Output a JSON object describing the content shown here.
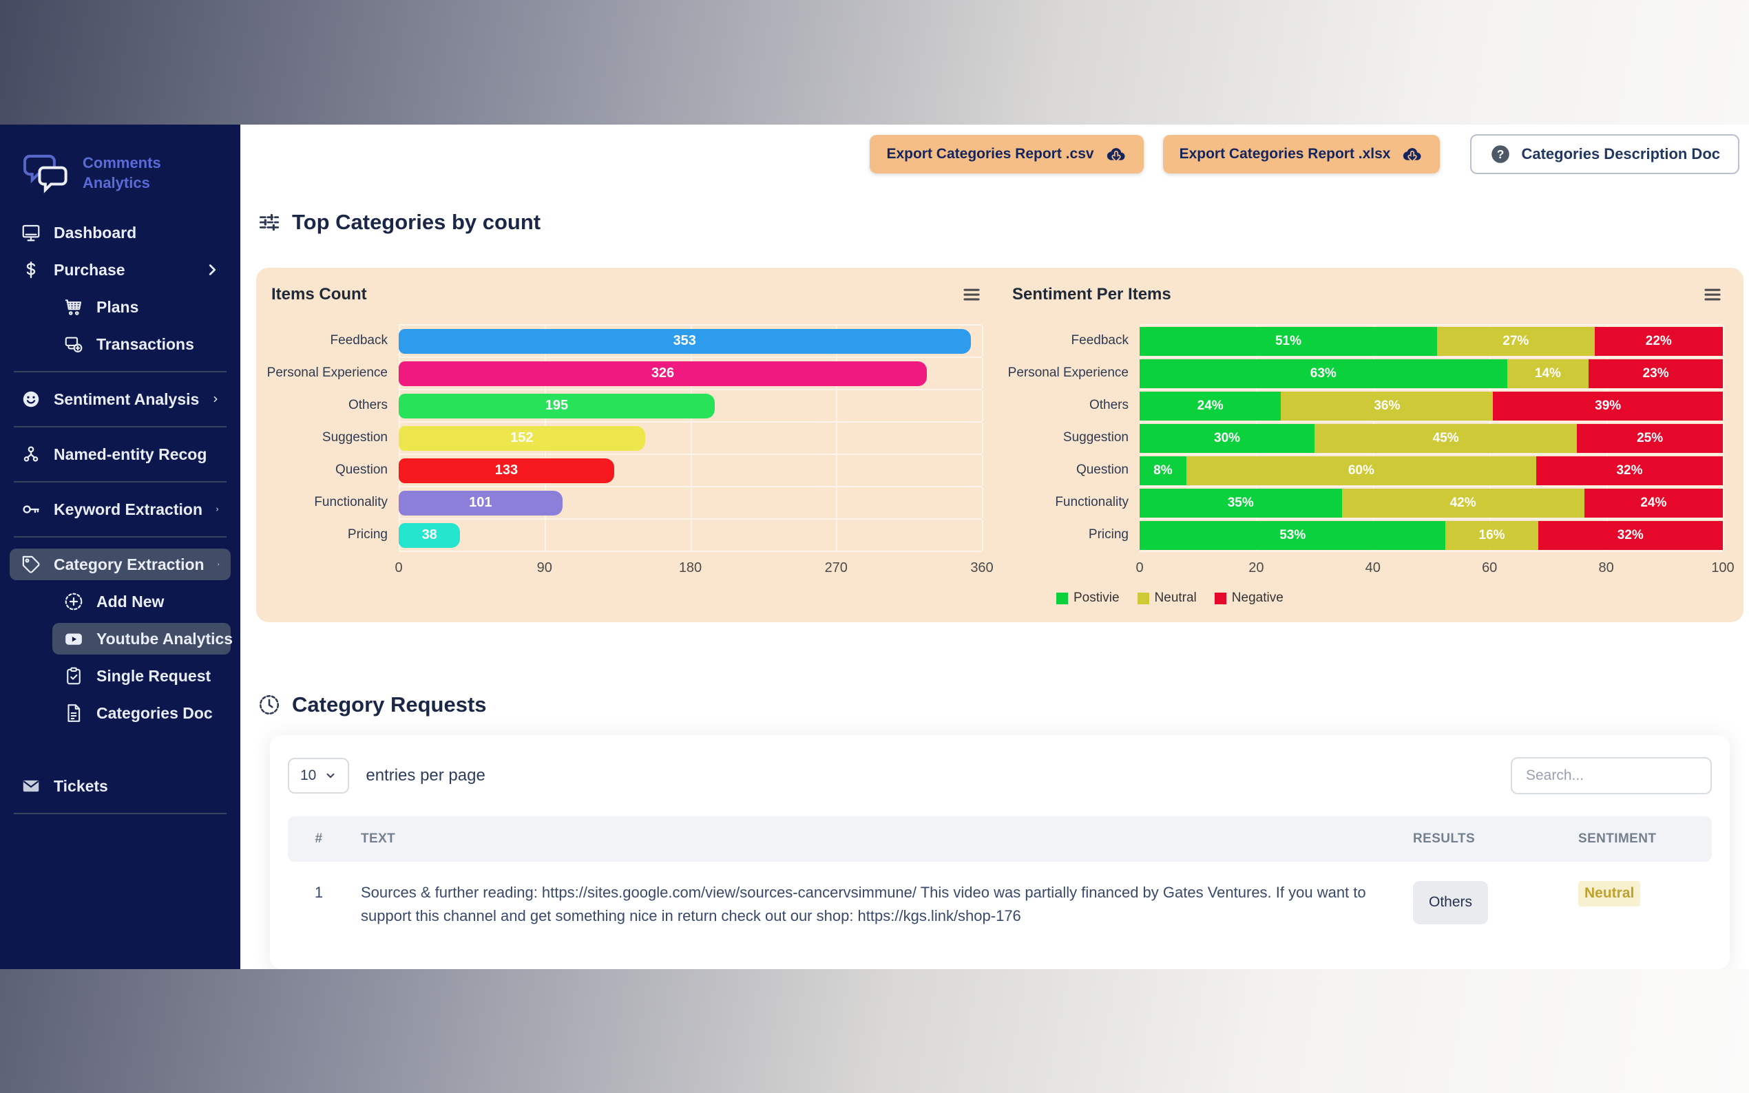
{
  "sidebar": {
    "logo": {
      "line1": "Comments",
      "line2": "Analytics",
      "icon": "chat-bubbles-icon",
      "color": "#5A6BD8"
    },
    "items": [
      {
        "label": "Dashboard",
        "icon": "monitor-icon"
      },
      {
        "label": "Purchase",
        "icon": "dollar-icon",
        "chevron": true
      },
      {
        "label": "Plans",
        "icon": "cart-icon",
        "indent": 1
      },
      {
        "label": "Transactions",
        "icon": "transactions-icon",
        "indent": 1
      },
      {
        "divider": true
      },
      {
        "label": "Sentiment Analysis",
        "icon": "smiley-icon",
        "chevron": true
      },
      {
        "divider": true
      },
      {
        "label": "Named-entity Recog",
        "icon": "network-icon",
        "chevron": true
      },
      {
        "divider": true
      },
      {
        "label": "Keyword Extraction",
        "icon": "key-icon",
        "chevron": true
      },
      {
        "divider": true
      },
      {
        "label": "Category Extraction",
        "icon": "tag-icon",
        "chevron": true,
        "active": true
      },
      {
        "label": "Add New",
        "icon": "plus-circle-icon",
        "indent": 1
      },
      {
        "label": "Youtube Analytics",
        "icon": "youtube-icon",
        "indent": 1,
        "active": true
      },
      {
        "label": "Single Request",
        "icon": "clipboard-icon",
        "indent": 1
      },
      {
        "label": "Categories Doc",
        "icon": "doc-icon",
        "indent": 1
      },
      {
        "gap": true
      },
      {
        "label": "Tickets",
        "icon": "mail-icon"
      },
      {
        "divider": true
      }
    ]
  },
  "toolbar": {
    "export_csv": "Export Categories Report .csv",
    "export_xlsx": "Export Categories Report .xlsx",
    "doc_button": "Categories Description Doc",
    "export_bg": "#F6BE87"
  },
  "sections": {
    "top_categories": {
      "title": "Top Categories by count",
      "icon": "sliders-icon"
    },
    "category_requests": {
      "title": "Category Requests",
      "icon": "clock-icon"
    }
  },
  "chart_data": [
    {
      "type": "bar",
      "orientation": "horizontal",
      "title": "Items Count",
      "categories": [
        "Feedback",
        "Personal Experience",
        "Others",
        "Suggestion",
        "Question",
        "Functionality",
        "Pricing"
      ],
      "values": [
        353,
        326,
        195,
        152,
        133,
        101,
        38
      ],
      "bar_colors": [
        "#2D9CEC",
        "#F0197F",
        "#28E359",
        "#EDE74D",
        "#F6191D",
        "#8B7FD9",
        "#25E5CE"
      ],
      "xlim": [
        0,
        360
      ],
      "xticks": [
        0,
        90,
        180,
        270,
        360
      ],
      "grid": true,
      "value_labels": "inside-center",
      "panel_bg": "#FAE6CE"
    },
    {
      "type": "bar",
      "orientation": "horizontal",
      "stacked": true,
      "percent": true,
      "title": "Sentiment Per Items",
      "categories": [
        "Feedback",
        "Personal Experience",
        "Others",
        "Suggestion",
        "Question",
        "Functionality",
        "Pricing"
      ],
      "series": [
        {
          "name": "Postivie",
          "color": "#0BD23C",
          "values": [
            51,
            63,
            24,
            30,
            8,
            35,
            53
          ]
        },
        {
          "name": "Neutral",
          "color": "#CDC937",
          "values": [
            27,
            14,
            36,
            45,
            60,
            42,
            16
          ]
        },
        {
          "name": "Negative",
          "color": "#E6082A",
          "values": [
            22,
            23,
            39,
            25,
            32,
            24,
            32
          ]
        }
      ],
      "xlim": [
        0,
        100
      ],
      "xticks": [
        0,
        20,
        40,
        60,
        80,
        100
      ],
      "grid": true,
      "legend_position": "bottom-left",
      "panel_bg": "#FAE6CE"
    }
  ],
  "table": {
    "page_size": "10",
    "entries_label": "entries per page",
    "search_placeholder": "Search...",
    "columns": [
      "#",
      "TEXT",
      "RESULTS",
      "SENTIMENT"
    ],
    "rows": [
      {
        "index": "1",
        "text": "Sources & further reading: https://sites.google.com/view/sources-cancervsimmune/ This video was partially financed by Gates Ventures. If you want to support this channel and get something nice in return check out our shop: https://kgs.link/shop-176",
        "result": "Others",
        "sentiment": "Neutral"
      }
    ]
  },
  "colors": {
    "sidebar_bg": "#0C184D",
    "sidebar_active": "#414D66",
    "panel_bg": "#FAE6CE",
    "accent_orange": "#F6BE87",
    "positive": "#0BD23C",
    "neutral": "#CDC937",
    "negative": "#E6082A",
    "sentiment_badge_bg": "#F8F1CF",
    "sentiment_badge_text": "#BFA130"
  }
}
